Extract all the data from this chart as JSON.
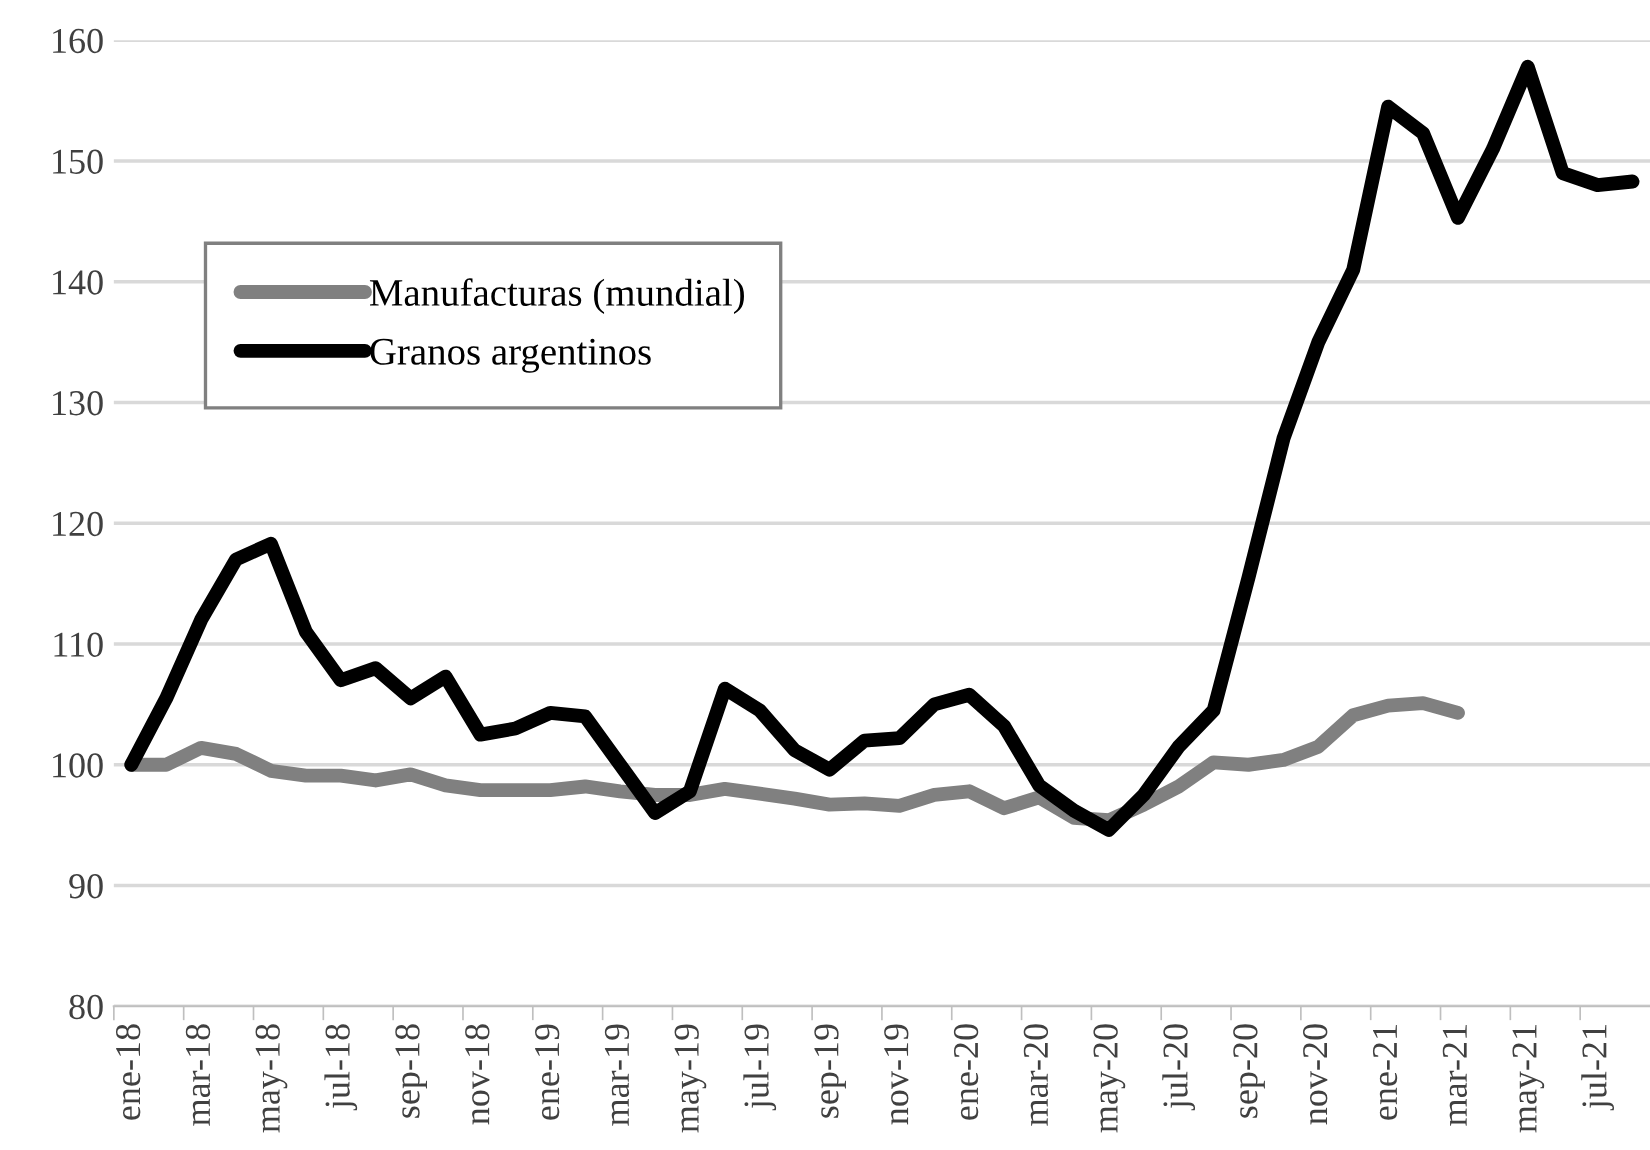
{
  "chart_data": {
    "type": "line",
    "categories": [
      "ene-18",
      null,
      "mar-18",
      null,
      "may-18",
      null,
      "jul-18",
      null,
      "sep-18",
      null,
      "nov-18",
      null,
      "ene-19",
      null,
      "mar-19",
      null,
      "may-19",
      null,
      "jul-19",
      null,
      "sep-19",
      null,
      "nov-19",
      null,
      "ene-20",
      null,
      "mar-20",
      null,
      "may-20",
      null,
      "jul-20",
      null,
      "sep-20",
      null,
      "nov-20",
      null,
      "ene-21",
      null,
      "mar-21",
      null,
      "may-21",
      null,
      "jul-21",
      null
    ],
    "series": [
      {
        "name": "Manufacturas (mundial)",
        "color": "#808080",
        "values": [
          100,
          100,
          101.4,
          100.9,
          99.5,
          99.1,
          99.1,
          98.7,
          99.2,
          98.3,
          97.9,
          97.9,
          97.9,
          98.2,
          97.8,
          97.5,
          97.5,
          98,
          97.6,
          97.2,
          96.7,
          96.8,
          96.6,
          97.5,
          97.8,
          96.4,
          97.3,
          95.6,
          95.4,
          96.7,
          98.2,
          100.2,
          100,
          100.4,
          101.5,
          104.1,
          104.9,
          105.1,
          104.3,
          null,
          null,
          null,
          null,
          null
        ]
      },
      {
        "name": "Granos argentinos",
        "color": "#000000",
        "values": [
          100,
          105.5,
          112,
          117,
          118.3,
          111,
          107,
          108,
          105.5,
          107.3,
          102.5,
          103,
          104.3,
          104,
          100,
          96,
          97.8,
          106.3,
          104.5,
          101.2,
          99.6,
          102,
          102.2,
          105,
          105.8,
          103.2,
          98.3,
          96.2,
          94.6,
          97.5,
          101.5,
          104.5,
          115.5,
          127,
          135,
          141,
          154.5,
          152.3,
          145.3,
          151,
          157.8,
          149,
          148,
          148.3
        ]
      }
    ],
    "ylim": [
      80,
      160
    ],
    "yticks": [
      80,
      90,
      100,
      110,
      120,
      130,
      140,
      150,
      160
    ],
    "grid": "y",
    "legend": "top left",
    "marker": "none",
    "line_style": "solid"
  }
}
